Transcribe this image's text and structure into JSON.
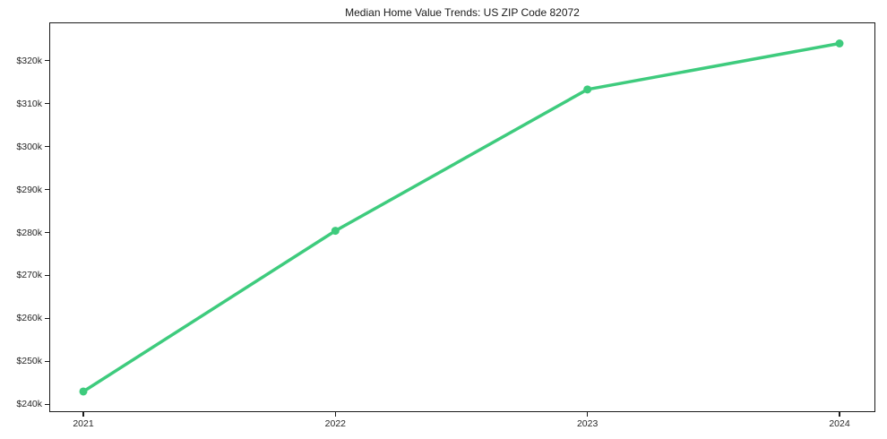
{
  "chart_data": {
    "type": "line",
    "title": "Median Home Value Trends: US ZIP Code 82072",
    "xlabel": "",
    "ylabel": "",
    "x": [
      2021,
      2022,
      2023,
      2024
    ],
    "x_tick_labels": [
      "2021",
      "2022",
      "2023",
      "2024"
    ],
    "values": [
      243000,
      280400,
      313300,
      324000
    ],
    "y_ticks": [
      240000,
      250000,
      260000,
      270000,
      280000,
      290000,
      300000,
      310000,
      320000
    ],
    "y_tick_labels": [
      "$240k",
      "$250k",
      "$260k",
      "$270k",
      "$280k",
      "$290k",
      "$300k",
      "$310k",
      "$320k"
    ],
    "ylim": [
      238200,
      328900
    ],
    "grid": false,
    "legend": "none",
    "marker": "circle",
    "line_color": "#3ecb7d",
    "text_color": "#262626",
    "frame_color": "#1a1a1a",
    "background_color": "#ffffff"
  }
}
